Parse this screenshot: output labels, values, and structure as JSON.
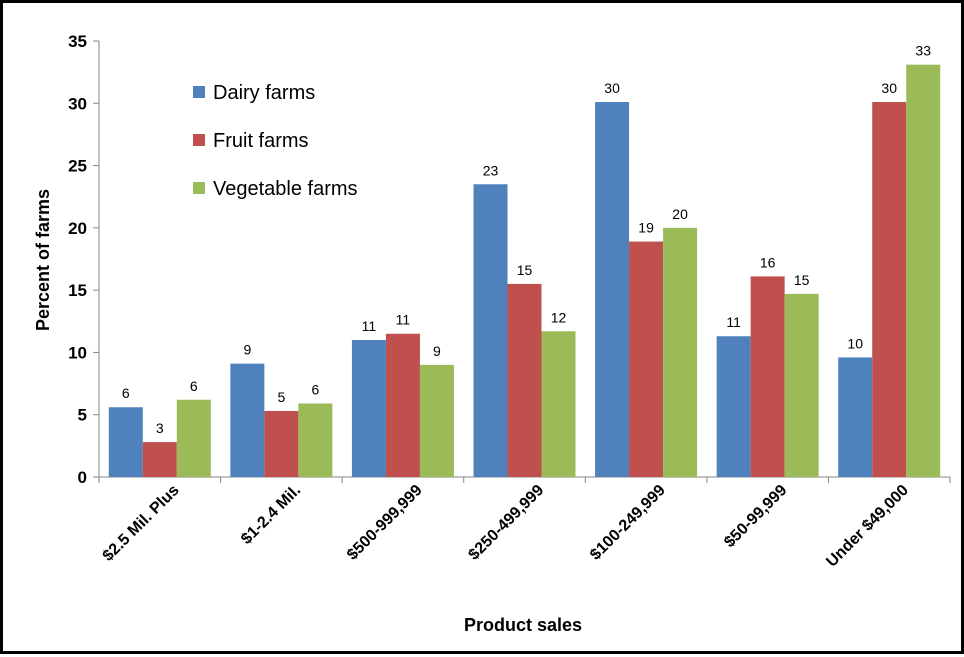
{
  "chart_data": {
    "type": "bar",
    "title": "",
    "xlabel": "Product sales",
    "ylabel": "Percent of farms",
    "ylim": [
      0,
      35
    ],
    "yticks": [
      0,
      5,
      10,
      15,
      20,
      25,
      30,
      35
    ],
    "grid": false,
    "legend_position": "top-left",
    "categories": [
      "$2.5 Mil. Plus",
      "$1-2.4 Mil.",
      "$500-999,999",
      "$250-499,999",
      "$100-249,999",
      "$50-99,999",
      "Under $49,000"
    ],
    "series": [
      {
        "name": "Dairy farms",
        "color": "#4F81BD",
        "values": [
          5.6,
          9.1,
          11,
          23.5,
          30.1,
          11.3,
          9.6
        ],
        "labels": [
          "6",
          "9",
          "11",
          "23",
          "30",
          "11",
          "10"
        ]
      },
      {
        "name": "Fruit farms",
        "color": "#C0504D",
        "values": [
          2.8,
          5.3,
          11.5,
          15.5,
          18.9,
          16.1,
          30.1
        ],
        "labels": [
          "3",
          "5",
          "11",
          "15",
          "19",
          "16",
          "30"
        ]
      },
      {
        "name": "Vegetable farms",
        "color": "#9BBB59",
        "values": [
          6.2,
          5.9,
          9,
          11.7,
          20,
          14.7,
          33.1
        ],
        "labels": [
          "6",
          "6",
          "9",
          "12",
          "20",
          "15",
          "33"
        ]
      }
    ]
  }
}
